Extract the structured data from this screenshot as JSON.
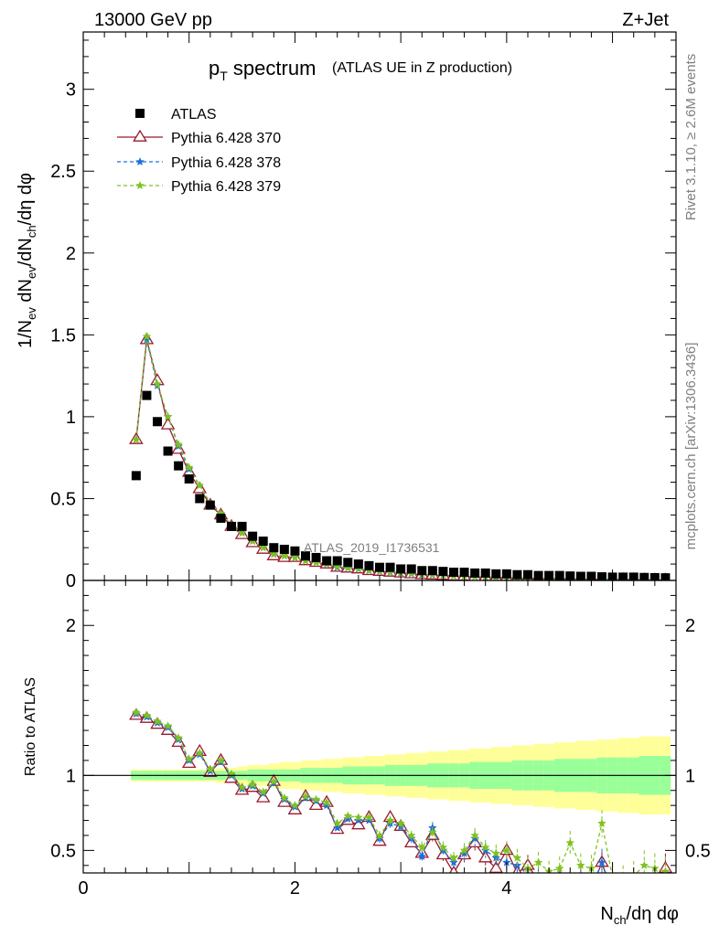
{
  "header": {
    "left_label": "13000 GeV pp",
    "right_label": "Z+Jet"
  },
  "title": {
    "main_p": "p",
    "main_sub": "T",
    "main_rest": " spectrum",
    "small": "(ATLAS UE in Z production)"
  },
  "watermark": "ATLAS_2019_I1736531",
  "side_labels": {
    "rivet": "Rivet 3.1.10, ≥ 2.6M events",
    "mcplots": "mcplots.cern.ch [arXiv:1306.3436]"
  },
  "ratio_ylabel": "Ratio to ATLAS",
  "colors": {
    "atlas": "#000000",
    "p370": "#9a1a2c",
    "p378": "#1f6fd6",
    "p379": "#7fc21f",
    "band_inner": "#99ff99",
    "band_outer": "#ffff99"
  },
  "chart_data": {
    "type": "line",
    "xlabel": "N_ch/dη dφ",
    "ylabel": "1/N_ev dN_ev/dN_ch/dη dφ",
    "xlim": [
      0,
      5.6
    ],
    "main_ylim": [
      0,
      3.35
    ],
    "main_yticks": [
      0,
      0.5,
      1,
      1.5,
      2,
      2.5,
      3
    ],
    "main_ytick_labels": [
      "0",
      "0.5",
      "1",
      "1.5",
      "2",
      "2.5",
      "3"
    ],
    "ratio_ylim": [
      0.35,
      2.3
    ],
    "ratio_yticks": [
      0.5,
      1,
      2
    ],
    "ratio_ytick_labels": [
      "0.5",
      "1",
      "2"
    ],
    "xticks": [
      0,
      2,
      4
    ],
    "xtick_labels": [
      "0",
      "2",
      "4"
    ],
    "x": [
      0.5,
      0.6,
      0.7,
      0.8,
      0.9,
      1.0,
      1.1,
      1.2,
      1.3,
      1.4,
      1.5,
      1.6,
      1.7,
      1.8,
      1.9,
      2.0,
      2.1,
      2.2,
      2.3,
      2.4,
      2.5,
      2.6,
      2.7,
      2.8,
      2.9,
      3.0,
      3.1,
      3.2,
      3.3,
      3.4,
      3.5,
      3.6,
      3.7,
      3.8,
      3.9,
      4.0,
      4.1,
      4.2,
      4.3,
      4.4,
      4.5,
      4.6,
      4.7,
      4.8,
      4.9,
      5.0,
      5.1,
      5.2,
      5.3,
      5.4,
      5.5
    ],
    "series": [
      {
        "name": "ATLAS",
        "values": [
          0.64,
          1.13,
          0.97,
          0.79,
          0.7,
          0.62,
          0.5,
          0.46,
          0.38,
          0.33,
          0.33,
          0.27,
          0.24,
          0.2,
          0.19,
          0.18,
          0.15,
          0.14,
          0.12,
          0.12,
          0.11,
          0.1,
          0.09,
          0.08,
          0.08,
          0.07,
          0.07,
          0.06,
          0.06,
          0.055,
          0.05,
          0.05,
          0.045,
          0.045,
          0.04,
          0.04,
          0.035,
          0.035,
          0.03,
          0.03,
          0.03,
          0.027,
          0.025,
          0.025,
          0.022,
          0.02,
          0.02,
          0.02,
          0.018,
          0.017,
          0.016
        ],
        "ratio": [
          1,
          1,
          1,
          1,
          1,
          1,
          1,
          1,
          1,
          1,
          1,
          1,
          1,
          1,
          1,
          1,
          1,
          1,
          1,
          1,
          1,
          1,
          1,
          1,
          1,
          1,
          1,
          1,
          1,
          1,
          1,
          1,
          1,
          1,
          1,
          1,
          1,
          1,
          1,
          1,
          1,
          1,
          1,
          1,
          1,
          1,
          1,
          1,
          1,
          1,
          1
        ],
        "band_inner": [
          0.03,
          0.03,
          0.03,
          0.03,
          0.03,
          0.03,
          0.03,
          0.03,
          0.03,
          0.03,
          0.03,
          0.04,
          0.04,
          0.04,
          0.04,
          0.04,
          0.05,
          0.05,
          0.05,
          0.05,
          0.06,
          0.06,
          0.06,
          0.06,
          0.07,
          0.07,
          0.07,
          0.07,
          0.08,
          0.08,
          0.08,
          0.08,
          0.09,
          0.09,
          0.09,
          0.09,
          0.1,
          0.1,
          0.1,
          0.1,
          0.11,
          0.11,
          0.11,
          0.11,
          0.12,
          0.12,
          0.12,
          0.12,
          0.13,
          0.13,
          0.13
        ],
        "band_outer": [
          0.04,
          0.04,
          0.04,
          0.04,
          0.04,
          0.04,
          0.04,
          0.04,
          0.05,
          0.05,
          0.06,
          0.07,
          0.07,
          0.08,
          0.09,
          0.09,
          0.1,
          0.1,
          0.11,
          0.11,
          0.12,
          0.12,
          0.13,
          0.13,
          0.14,
          0.14,
          0.15,
          0.15,
          0.16,
          0.16,
          0.17,
          0.17,
          0.18,
          0.18,
          0.19,
          0.19,
          0.2,
          0.2,
          0.21,
          0.21,
          0.22,
          0.22,
          0.23,
          0.23,
          0.24,
          0.24,
          0.25,
          0.25,
          0.26,
          0.26,
          0.26
        ]
      },
      {
        "name": "Pythia 6.428 370",
        "marker": "triangle",
        "values": [
          0.86,
          1.47,
          1.22,
          0.95,
          0.8,
          0.66,
          0.56,
          0.46,
          0.4,
          0.33,
          0.28,
          0.23,
          0.19,
          0.15,
          0.14,
          0.14,
          0.12,
          0.11,
          0.1,
          0.08,
          0.075,
          0.07,
          0.06,
          0.055,
          0.05,
          0.045,
          0.04,
          0.035,
          0.033,
          0.03,
          0.027,
          0.025,
          0.022,
          0.02,
          0.018,
          0.016,
          0.014,
          0.013,
          0.012,
          0.011,
          0.01,
          0.009,
          0.008,
          0.007,
          0.006,
          0.005,
          0.005,
          0.004,
          0.004,
          0.003,
          0.003
        ],
        "ratio": [
          1.4,
          1.38,
          1.34,
          1.3,
          1.22,
          1.08,
          1.16,
          1.02,
          1.1,
          0.98,
          0.9,
          0.92,
          0.85,
          0.96,
          0.82,
          0.77,
          0.86,
          0.8,
          0.82,
          0.64,
          0.7,
          0.67,
          0.72,
          0.56,
          0.72,
          0.66,
          0.55,
          0.48,
          0.6,
          0.47,
          0.35,
          0.47,
          0.55,
          0.45,
          0.38,
          0.5,
          0.35,
          0.4,
          0.3,
          0.28,
          0.32,
          0.26,
          0.3,
          0.24,
          0.42,
          0.2,
          0.18,
          0.22,
          0.2,
          0.19,
          0.38
        ],
        "ratio_err": [
          0.01,
          0.01,
          0.01,
          0.01,
          0.01,
          0.01,
          0.01,
          0.01,
          0.01,
          0.01,
          0.01,
          0.01,
          0.01,
          0.01,
          0.01,
          0.02,
          0.02,
          0.02,
          0.02,
          0.02,
          0.02,
          0.02,
          0.02,
          0.03,
          0.03,
          0.03,
          0.03,
          0.04,
          0.04,
          0.04,
          0.04,
          0.05,
          0.05,
          0.05,
          0.06,
          0.06,
          0.06,
          0.07,
          0.07,
          0.07,
          0.08,
          0.08,
          0.08,
          0.09,
          0.09,
          0.09,
          0.1,
          0.1,
          0.1,
          0.1,
          0.1
        ]
      },
      {
        "name": "Pythia 6.428 378",
        "marker": "star",
        "values": [
          0.86,
          1.47,
          1.19,
          1.0,
          0.82,
          0.68,
          0.58,
          0.47,
          0.4,
          0.34,
          0.29,
          0.24,
          0.2,
          0.16,
          0.15,
          0.14,
          0.12,
          0.11,
          0.1,
          0.08,
          0.076,
          0.07,
          0.06,
          0.056,
          0.05,
          0.046,
          0.041,
          0.036,
          0.034,
          0.031,
          0.028,
          0.026,
          0.023,
          0.021,
          0.019,
          0.017,
          0.015,
          0.014,
          0.013,
          0.012,
          0.011,
          0.01,
          0.009,
          0.008,
          0.007,
          0.006,
          0.005,
          0.005,
          0.004,
          0.004,
          0.003
        ],
        "ratio": [
          1.41,
          1.39,
          1.35,
          1.32,
          1.24,
          1.1,
          1.14,
          1.03,
          1.09,
          1.0,
          0.91,
          0.93,
          0.88,
          0.95,
          0.84,
          0.79,
          0.85,
          0.83,
          0.8,
          0.65,
          0.71,
          0.7,
          0.7,
          0.58,
          0.68,
          0.66,
          0.58,
          0.46,
          0.65,
          0.5,
          0.42,
          0.48,
          0.58,
          0.5,
          0.45,
          0.42,
          0.4,
          0.34,
          0.32,
          0.29,
          0.3,
          0.24,
          0.32,
          0.25,
          0.42,
          0.22,
          0.2,
          0.22,
          0.2,
          0.19,
          0.2
        ],
        "ratio_err": [
          0.01,
          0.01,
          0.01,
          0.01,
          0.01,
          0.01,
          0.01,
          0.01,
          0.01,
          0.01,
          0.01,
          0.01,
          0.01,
          0.01,
          0.01,
          0.02,
          0.02,
          0.02,
          0.02,
          0.02,
          0.02,
          0.02,
          0.02,
          0.03,
          0.03,
          0.03,
          0.03,
          0.04,
          0.04,
          0.04,
          0.04,
          0.05,
          0.05,
          0.05,
          0.06,
          0.06,
          0.06,
          0.07,
          0.07,
          0.07,
          0.08,
          0.08,
          0.08,
          0.09,
          0.09,
          0.09,
          0.1,
          0.1,
          0.1,
          0.1,
          0.1
        ]
      },
      {
        "name": "Pythia 6.428 379",
        "marker": "star",
        "values": [
          0.86,
          1.49,
          1.2,
          1.0,
          0.83,
          0.69,
          0.58,
          0.47,
          0.41,
          0.34,
          0.29,
          0.24,
          0.2,
          0.16,
          0.15,
          0.14,
          0.12,
          0.11,
          0.1,
          0.085,
          0.078,
          0.072,
          0.062,
          0.058,
          0.052,
          0.048,
          0.043,
          0.038,
          0.035,
          0.032,
          0.029,
          0.027,
          0.024,
          0.022,
          0.02,
          0.018,
          0.016,
          0.015,
          0.014,
          0.013,
          0.012,
          0.011,
          0.01,
          0.009,
          0.008,
          0.007,
          0.006,
          0.006,
          0.005,
          0.005,
          0.004
        ],
        "ratio": [
          1.42,
          1.4,
          1.36,
          1.33,
          1.25,
          1.11,
          1.15,
          1.04,
          1.1,
          1.01,
          0.92,
          0.94,
          0.89,
          0.96,
          0.85,
          0.8,
          0.86,
          0.84,
          0.82,
          0.68,
          0.73,
          0.72,
          0.72,
          0.6,
          0.7,
          0.68,
          0.6,
          0.52,
          0.62,
          0.52,
          0.45,
          0.5,
          0.6,
          0.52,
          0.48,
          0.5,
          0.45,
          0.38,
          0.42,
          0.36,
          0.38,
          0.55,
          0.4,
          0.38,
          0.68,
          0.32,
          0.3,
          0.33,
          0.4,
          0.38,
          0.36
        ],
        "ratio_err": [
          0.01,
          0.01,
          0.01,
          0.01,
          0.01,
          0.01,
          0.01,
          0.01,
          0.01,
          0.01,
          0.01,
          0.01,
          0.01,
          0.01,
          0.01,
          0.02,
          0.02,
          0.02,
          0.02,
          0.02,
          0.02,
          0.02,
          0.02,
          0.03,
          0.03,
          0.03,
          0.03,
          0.04,
          0.04,
          0.04,
          0.04,
          0.05,
          0.05,
          0.05,
          0.06,
          0.06,
          0.06,
          0.07,
          0.07,
          0.07,
          0.08,
          0.08,
          0.08,
          0.09,
          0.09,
          0.09,
          0.1,
          0.1,
          0.1,
          0.1,
          0.1
        ]
      }
    ],
    "legend": {
      "placement": "top-left",
      "entries": [
        "ATLAS",
        "Pythia 6.428 370",
        "Pythia 6.428 378",
        "Pythia 6.428 379"
      ]
    },
    "grid": false
  }
}
